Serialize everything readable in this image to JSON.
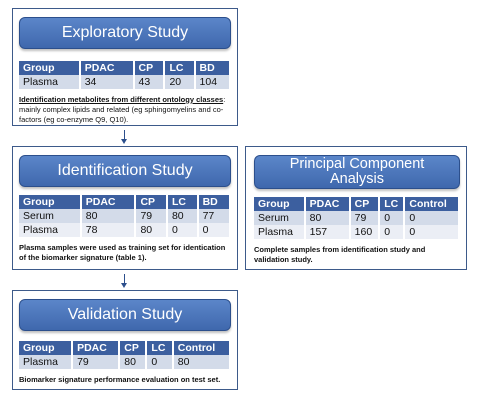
{
  "exploratory": {
    "title": "Exploratory Study",
    "columns": [
      "Group",
      "PDAC",
      "CP",
      "LC",
      "BD"
    ],
    "rows": [
      [
        "Plasma",
        "34",
        "43",
        "20",
        "104"
      ]
    ],
    "note_bold": "Identification metabolites from different ontology classes",
    "note_rest": ": mainly complex lipids and related (eg sphingomyelins and co-factors (eg  co-enzyme Q9, Q10)."
  },
  "identification": {
    "title": "Identification Study",
    "columns": [
      "Group",
      "PDAC",
      "CP",
      "LC",
      "BD"
    ],
    "rows": [
      [
        "Serum",
        "80",
        "79",
        "80",
        "77"
      ],
      [
        "Plasma",
        "78",
        "80",
        "0",
        "0"
      ]
    ],
    "note": "Plasma samples were used as training set for identication of the biomarker signature (table 1)."
  },
  "pca": {
    "title": "Principal Component Analysis",
    "columns": [
      "Group",
      "PDAC",
      "CP",
      "LC",
      "Control"
    ],
    "rows": [
      [
        "Serum",
        "80",
        "79",
        "0",
        "0"
      ],
      [
        "Plasma",
        "157",
        "160",
        "0",
        "0"
      ]
    ],
    "note": "Complete samples from identification study and validation study."
  },
  "validation": {
    "title": "Validation Study",
    "columns": [
      "Group",
      "PDAC",
      "CP",
      "LC",
      "Control"
    ],
    "rows": [
      [
        "Plasma",
        "79",
        "80",
        "0",
        "80"
      ]
    ],
    "note": "Biomarker signature performance evaluation on test set."
  },
  "colors": {
    "banner": "#4a74b8",
    "header_row": "#3c5f9f",
    "row_dark": "#d3dbe9",
    "row_light": "#ebeef5",
    "border": "#3d5a8a"
  }
}
